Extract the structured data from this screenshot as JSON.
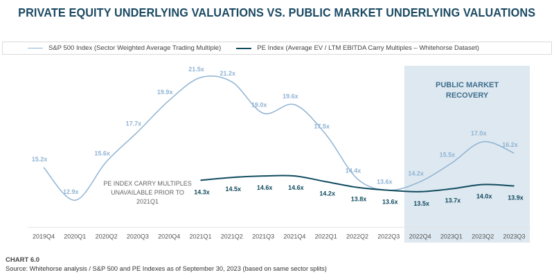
{
  "title": "PRIVATE EQUITY UNDERLYING VALUATIONS VS. PUBLIC MARKET UNDERLYING VALUATIONS",
  "chart_data": {
    "type": "line",
    "title": "PRIVATE EQUITY UNDERLYING VALUATIONS VS. PUBLIC MARKET UNDERLYING VALUATIONS",
    "categories": [
      "2019Q4",
      "2020Q1",
      "2020Q2",
      "2020Q3",
      "2020Q4",
      "2021Q1",
      "2021Q2",
      "2021Q3",
      "2021Q4",
      "2022Q1",
      "2022Q2",
      "2022Q3",
      "2022Q4",
      "2023Q1",
      "2023Q2",
      "2023Q3"
    ],
    "series": [
      {
        "name": "S&P 500 Index (Sector Weighted Average Trading Multiple)",
        "color": "#8fb3d3",
        "values": [
          15.2,
          12.9,
          15.6,
          17.7,
          19.9,
          21.5,
          21.2,
          19.0,
          19.6,
          17.5,
          14.4,
          13.6,
          14.2,
          15.5,
          17.0,
          16.2
        ],
        "labels": [
          "15.2x",
          "12.9x",
          "15.6x",
          "17.7x",
          "19.9x",
          "21.5x",
          "21.2x",
          "19.0x",
          "19.6x",
          "17.5x",
          "14.4x",
          "13.6x",
          "14.2x",
          "15.5x",
          "17.0x",
          "16.2x"
        ]
      },
      {
        "name": "PE Index (Average EV / LTM EBITDA Carry Multiples – Whitehorse Dataset)",
        "color": "#0f4a5e",
        "values": [
          null,
          null,
          null,
          null,
          null,
          14.3,
          14.5,
          14.6,
          14.6,
          14.2,
          13.8,
          13.6,
          13.5,
          13.7,
          14.0,
          13.9
        ],
        "labels": [
          null,
          null,
          null,
          null,
          null,
          "14.3x",
          "14.5x",
          "14.6x",
          "14.6x",
          "14.2x",
          "13.8x",
          "13.6x",
          "13.5x",
          "13.7x",
          "14.0x",
          "13.9x"
        ]
      }
    ],
    "ylim": [
      11,
      22
    ],
    "grid": false,
    "legend": "top",
    "annotations": {
      "shaded_region": {
        "from": "2022Q4",
        "to": "2023Q3",
        "label_line1": "PUBLIC MARKET",
        "label_line2": "RECOVERY",
        "color": "#dde8f0"
      },
      "note_lines": [
        "PE INDEX CARRY MULTIPLES",
        "UNAVAILABLE PRIOR TO",
        "2021Q1"
      ]
    }
  },
  "footer": {
    "chart_label": "CHART 6.0",
    "source": "Source: Whitehorse analysis / S&P 500 and PE Indexes as of September 30, 2023 (based on same sector splits)"
  }
}
